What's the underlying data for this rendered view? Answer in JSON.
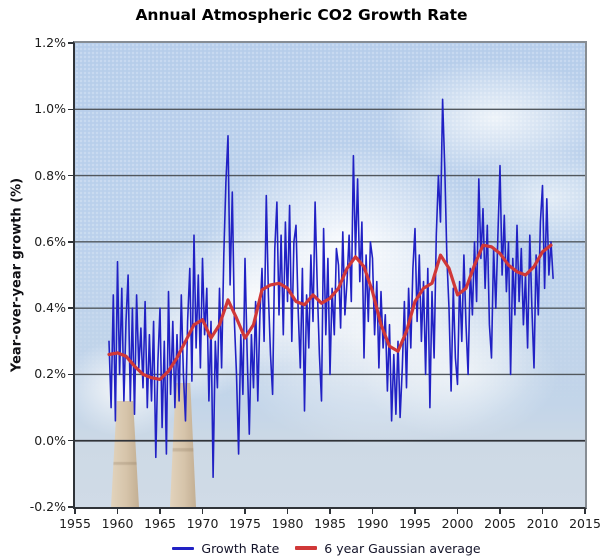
{
  "chart_data": {
    "type": "line",
    "title": "Annual Atmospheric CO2 Growth Rate",
    "xlabel": "",
    "ylabel": "Year-over-year growth (%)",
    "xlim": [
      1955,
      2015
    ],
    "ylim": [
      -0.2,
      1.2
    ],
    "x_ticks": [
      1955,
      1960,
      1965,
      1970,
      1975,
      1980,
      1985,
      1990,
      1995,
      2000,
      2005,
      2010,
      2015
    ],
    "x_tick_labels": [
      "1955",
      "1960",
      "1965",
      "1970",
      "1975",
      "1980",
      "1985",
      "1990",
      "1995",
      "2000",
      "2005",
      "2010",
      "2015"
    ],
    "y_ticks": [
      1.2,
      1.0,
      0.8,
      0.6,
      0.4,
      0.2,
      0.0,
      -0.2
    ],
    "y_tick_labels": [
      "1.2%",
      "1.0%",
      "0.8%",
      "0.6%",
      "0.4%",
      "0.2%",
      "0.0%",
      "-0.2%"
    ],
    "grid": "horizontal",
    "grid_color": "#51575d",
    "zero_line_color": "#303338",
    "legend_position": "bottom",
    "background_description": "photo of two power-plant smokestacks with white smoke plume, blue sky and clouds",
    "series": [
      {
        "name": "Growth Rate",
        "color": "#2121c4",
        "width": 1.6,
        "x_start": 1959.0,
        "x_step": 0.25,
        "values": [
          0.3,
          0.1,
          0.44,
          0.06,
          0.54,
          0.2,
          0.46,
          0.12,
          0.36,
          0.5,
          0.12,
          0.4,
          0.08,
          0.44,
          0.22,
          0.34,
          0.16,
          0.42,
          0.1,
          0.32,
          0.12,
          0.36,
          -0.05,
          0.24,
          0.4,
          0.04,
          0.3,
          -0.04,
          0.45,
          0.14,
          0.36,
          0.1,
          0.32,
          0.12,
          0.44,
          0.2,
          0.06,
          0.36,
          0.52,
          0.18,
          0.62,
          0.28,
          0.5,
          0.22,
          0.55,
          0.32,
          0.46,
          0.12,
          0.36,
          -0.11,
          0.3,
          0.16,
          0.46,
          0.22,
          0.56,
          0.78,
          0.92,
          0.47,
          0.75,
          0.36,
          0.2,
          -0.04,
          0.32,
          0.14,
          0.55,
          0.27,
          0.02,
          0.32,
          0.16,
          0.42,
          0.12,
          0.38,
          0.52,
          0.3,
          0.74,
          0.44,
          0.26,
          0.14,
          0.58,
          0.72,
          0.38,
          0.62,
          0.32,
          0.66,
          0.42,
          0.71,
          0.3,
          0.6,
          0.65,
          0.4,
          0.22,
          0.52,
          0.09,
          0.44,
          0.28,
          0.56,
          0.36,
          0.72,
          0.46,
          0.26,
          0.12,
          0.64,
          0.32,
          0.55,
          0.2,
          0.46,
          0.32,
          0.58,
          0.53,
          0.34,
          0.63,
          0.38,
          0.48,
          0.62,
          0.42,
          0.86,
          0.56,
          0.79,
          0.48,
          0.66,
          0.25,
          0.56,
          0.36,
          0.6,
          0.55,
          0.32,
          0.48,
          0.22,
          0.45,
          0.28,
          0.38,
          0.15,
          0.35,
          0.06,
          0.26,
          0.08,
          0.3,
          0.07,
          0.22,
          0.42,
          0.16,
          0.46,
          0.28,
          0.52,
          0.64,
          0.36,
          0.56,
          0.3,
          0.48,
          0.2,
          0.52,
          0.1,
          0.45,
          0.25,
          0.62,
          0.8,
          0.66,
          1.03,
          0.82,
          0.55,
          0.4,
          0.15,
          0.46,
          0.25,
          0.17,
          0.48,
          0.3,
          0.56,
          0.35,
          0.2,
          0.52,
          0.38,
          0.6,
          0.42,
          0.79,
          0.55,
          0.7,
          0.46,
          0.65,
          0.35,
          0.25,
          0.58,
          0.4,
          0.62,
          0.83,
          0.5,
          0.68,
          0.45,
          0.6,
          0.2,
          0.55,
          0.38,
          0.65,
          0.42,
          0.58,
          0.35,
          0.5,
          0.28,
          0.62,
          0.4,
          0.22,
          0.56,
          0.38,
          0.66,
          0.77,
          0.46,
          0.73,
          0.5,
          0.6,
          0.49
        ]
      },
      {
        "name": "6 year Gaussian average",
        "color": "#d03838",
        "width": 3.2,
        "x_start": 1959,
        "x_step": 1,
        "values": [
          0.26,
          0.265,
          0.255,
          0.225,
          0.2,
          0.19,
          0.185,
          0.21,
          0.25,
          0.3,
          0.35,
          0.365,
          0.31,
          0.35,
          0.425,
          0.37,
          0.31,
          0.35,
          0.455,
          0.47,
          0.475,
          0.46,
          0.42,
          0.41,
          0.44,
          0.415,
          0.43,
          0.46,
          0.52,
          0.555,
          0.525,
          0.45,
          0.35,
          0.285,
          0.27,
          0.33,
          0.42,
          0.46,
          0.475,
          0.56,
          0.52,
          0.44,
          0.46,
          0.53,
          0.59,
          0.585,
          0.565,
          0.53,
          0.51,
          0.5,
          0.525,
          0.57,
          0.59
        ]
      }
    ]
  }
}
